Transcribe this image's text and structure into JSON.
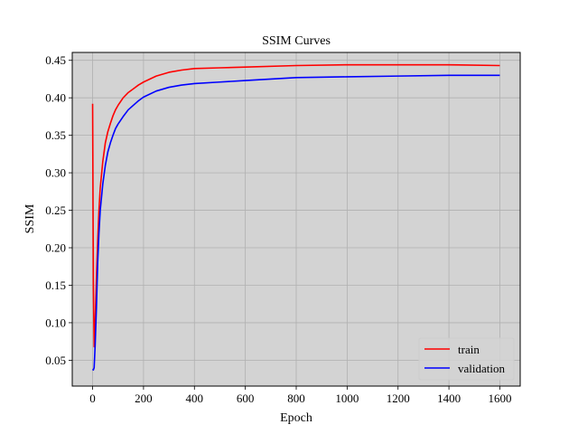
{
  "chart_data": {
    "type": "line",
    "title": "SSIM Curves",
    "xlabel": "Epoch",
    "ylabel": "SSIM",
    "xlim": [
      -80,
      1680
    ],
    "ylim": [
      0.0155,
      0.4605
    ],
    "xticks": [
      0,
      200,
      400,
      600,
      800,
      1000,
      1200,
      1400,
      1600
    ],
    "yticks": [
      0.05,
      0.1,
      0.15,
      0.2,
      0.25,
      0.3,
      0.35,
      0.4,
      0.45
    ],
    "xtick_labels": [
      "0",
      "200",
      "400",
      "600",
      "800",
      "1000",
      "1200",
      "1400",
      "1600"
    ],
    "ytick_labels": [
      "0.05",
      "0.10",
      "0.15",
      "0.20",
      "0.25",
      "0.30",
      "0.35",
      "0.40",
      "0.45"
    ],
    "grid": true,
    "background": "#d3d3d3",
    "legend_position": "bottom-right",
    "series": [
      {
        "name": "train",
        "color": "#ff0000",
        "x": [
          0,
          3,
          6,
          10,
          15,
          20,
          25,
          30,
          40,
          50,
          60,
          70,
          80,
          90,
          100,
          120,
          140,
          160,
          180,
          200,
          250,
          300,
          350,
          400,
          500,
          600,
          800,
          1000,
          1200,
          1400,
          1600
        ],
        "y": [
          0.392,
          0.15,
          0.068,
          0.1,
          0.16,
          0.21,
          0.25,
          0.28,
          0.315,
          0.34,
          0.355,
          0.366,
          0.376,
          0.384,
          0.39,
          0.4,
          0.407,
          0.412,
          0.417,
          0.421,
          0.429,
          0.434,
          0.437,
          0.439,
          0.44,
          0.441,
          0.443,
          0.444,
          0.444,
          0.444,
          0.443
        ]
      },
      {
        "name": "validation",
        "color": "#0000ff",
        "x": [
          0,
          3,
          6,
          10,
          15,
          20,
          25,
          30,
          40,
          50,
          60,
          70,
          80,
          90,
          100,
          120,
          140,
          160,
          180,
          200,
          250,
          300,
          350,
          400,
          500,
          600,
          800,
          1000,
          1200,
          1400,
          1600
        ],
        "y": [
          0.038,
          0.037,
          0.04,
          0.07,
          0.12,
          0.18,
          0.22,
          0.25,
          0.285,
          0.31,
          0.328,
          0.34,
          0.35,
          0.359,
          0.365,
          0.375,
          0.384,
          0.39,
          0.396,
          0.401,
          0.409,
          0.414,
          0.417,
          0.419,
          0.421,
          0.423,
          0.427,
          0.428,
          0.429,
          0.43,
          0.43
        ]
      }
    ]
  }
}
